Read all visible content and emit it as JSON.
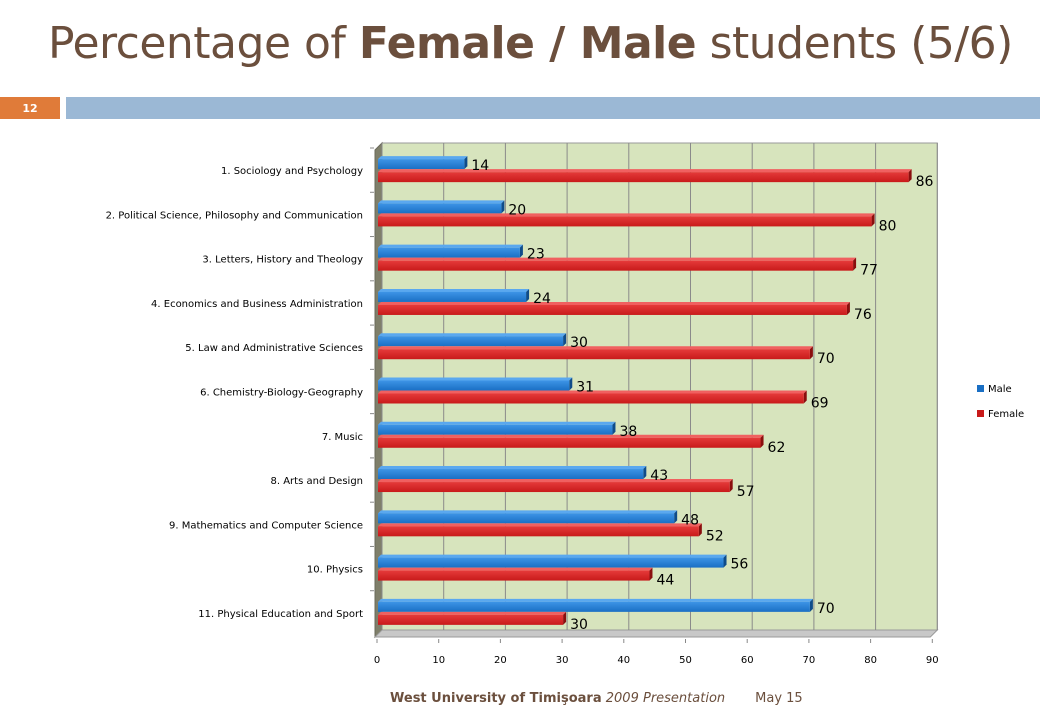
{
  "slide": {
    "title_part1": "Percentage of ",
    "title_bold": "Female / Male",
    "title_part2": " students (5/6)",
    "page_number": "12",
    "footer_bold": "West University of Timişoara",
    "footer_italic": " 2009 Presentation",
    "footer_date": "May 15"
  },
  "colors": {
    "male": "#1a6fc4",
    "female": "#c81a1a",
    "plot_bg": "#d7e4bd",
    "header_bar": "#9bb8d5",
    "page_badge": "#e07b39"
  },
  "chart_data": {
    "type": "bar",
    "orientation": "horizontal",
    "categories": [
      "1. Sociology and Psychology",
      "2. Political Science, Philosophy and Communication",
      "3. Letters, History and Theology",
      "4. Economics and Business Administration",
      "5. Law and Administrative Sciences",
      "6. Chemistry-Biology-Geography",
      "7. Music",
      "8. Arts and Design",
      "9. Mathematics and Computer Science",
      "10. Physics",
      "11. Physical Education and Sport"
    ],
    "series": [
      {
        "name": "Male",
        "values": [
          14,
          20,
          23,
          24,
          30,
          31,
          38,
          43,
          48,
          56,
          70
        ]
      },
      {
        "name": "Female",
        "values": [
          86,
          80,
          77,
          76,
          70,
          69,
          62,
          57,
          52,
          44,
          30
        ]
      }
    ],
    "xlim": [
      0,
      90
    ],
    "xticks": [
      "0",
      "10",
      "20",
      "30",
      "40",
      "50",
      "60",
      "70",
      "80",
      "90"
    ],
    "grid": true,
    "legend_position": "right",
    "data_labels": true
  }
}
